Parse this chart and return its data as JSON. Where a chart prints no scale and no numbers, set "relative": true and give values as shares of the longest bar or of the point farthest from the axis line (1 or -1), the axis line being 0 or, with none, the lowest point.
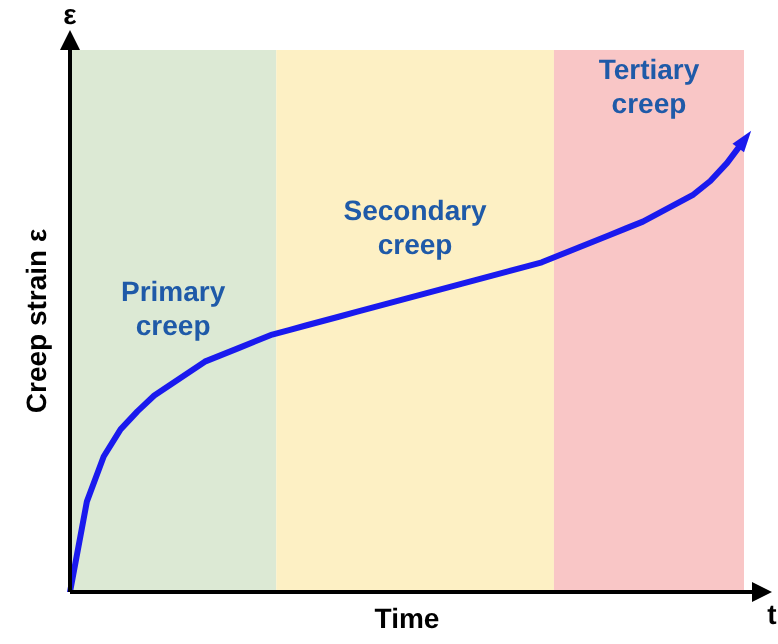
{
  "chart_data": {
    "type": "line",
    "relative": true,
    "xlabel": "Time",
    "ylabel": "Creep strain ε",
    "annotations": [
      "Primary creep",
      "Secondary creep",
      "Tertiary creep",
      "ε",
      "t"
    ],
    "categories": [
      null,
      null,
      null,
      null,
      null,
      null,
      null,
      null,
      null,
      null,
      null,
      null,
      null,
      null,
      null,
      null,
      null,
      null,
      null,
      null,
      null,
      null,
      null,
      null,
      null,
      null,
      null,
      null,
      null,
      null,
      null,
      null,
      null,
      null,
      null,
      null,
      null,
      null,
      null,
      null,
      null
    ],
    "grid": false,
    "marker": "none",
    "line_style": "solid",
    "series": [
      {
        "color": "#1a1aee",
        "values": [
          0,
          0.2,
          0.3,
          0.36,
          0.4,
          0.435,
          0.46,
          0.485,
          0.51,
          0.525,
          0.54,
          0.555,
          0.57,
          0.58,
          0.59,
          0.6,
          0.61,
          0.62,
          0.63,
          0.64,
          0.65,
          0.66,
          0.67,
          0.68,
          0.69,
          0.7,
          0.71,
          0.72,
          0.73,
          0.745,
          0.76,
          0.775,
          0.79,
          0.805,
          0.82,
          0.84,
          0.86,
          0.88,
          0.91,
          0.95,
          1
        ]
      }
    ]
  }
}
